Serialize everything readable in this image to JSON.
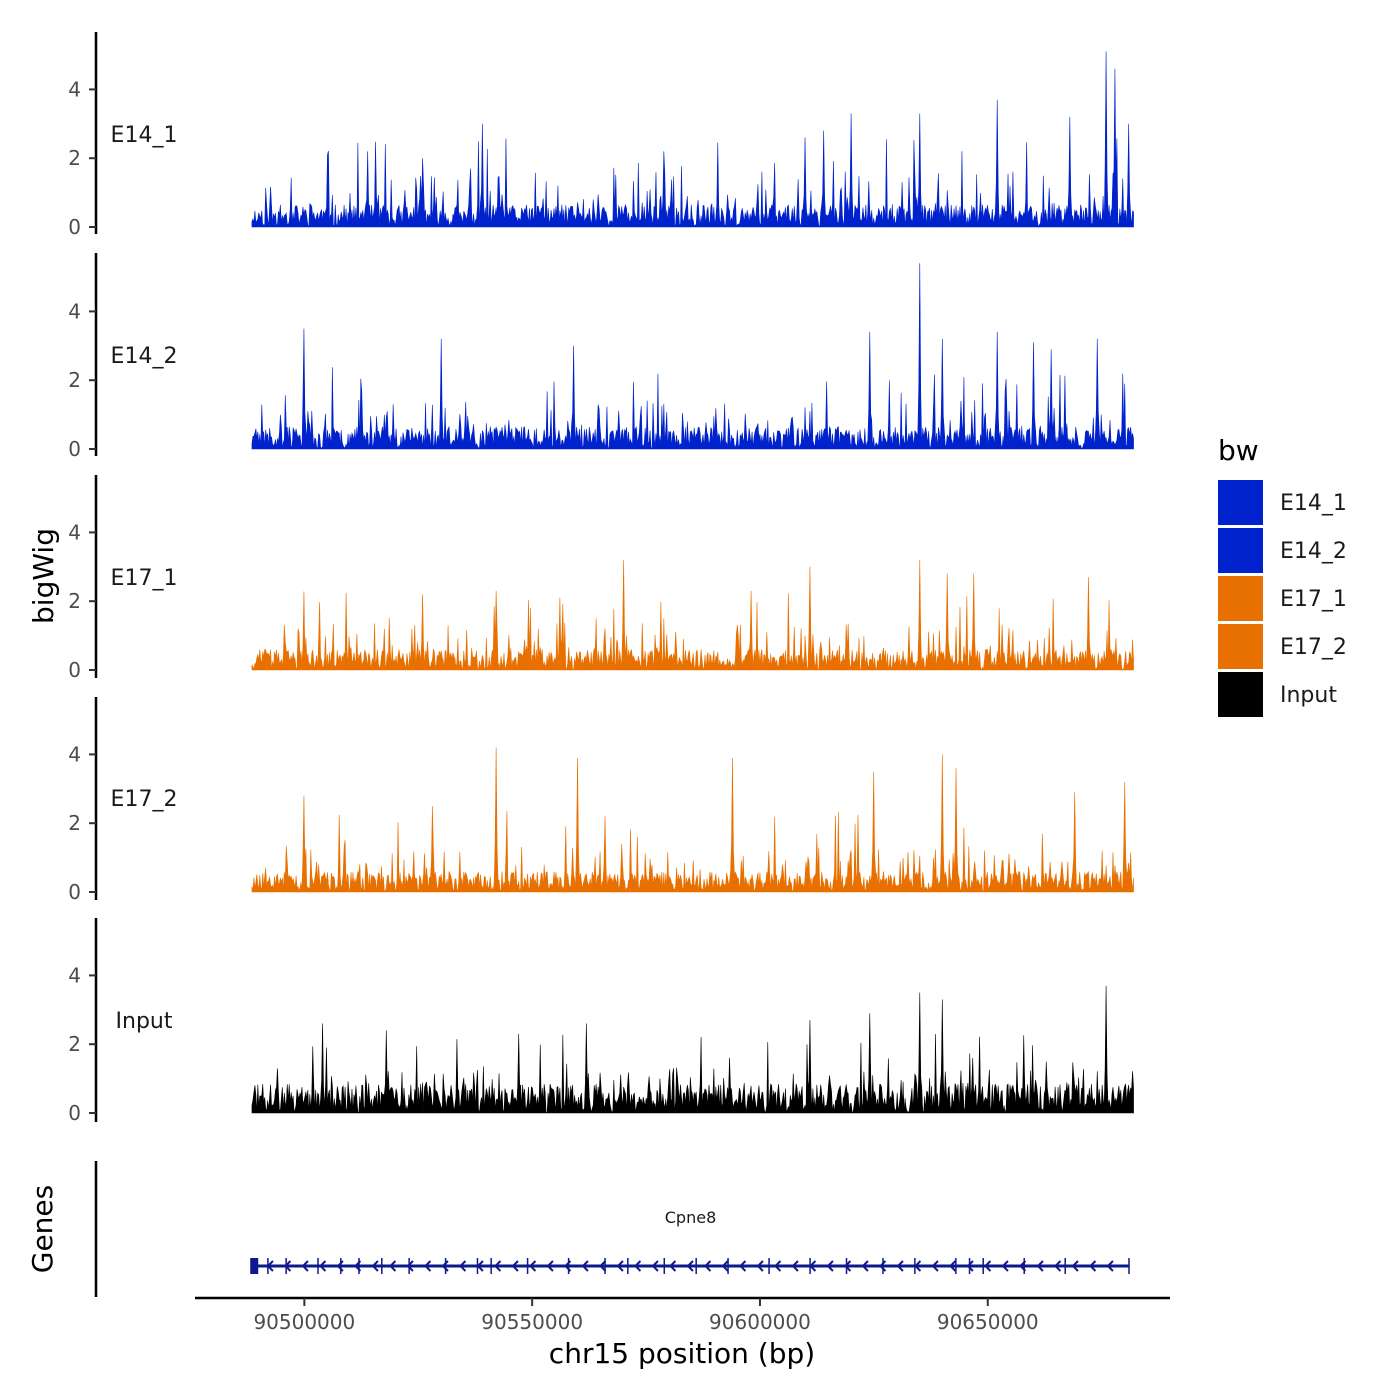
{
  "chart_data": {
    "type": "area",
    "ylabel": "bigWig",
    "xlabel": "chr15 position (bp)",
    "xlim": [
      90476000,
      90690000
    ],
    "data_xrange": [
      90488500,
      90682000
    ],
    "x_ticks": [
      90500000,
      90550000,
      90600000,
      90650000
    ],
    "x_tick_labels": [
      "90500000",
      "90550000",
      "90600000",
      "90650000"
    ],
    "ylim": [
      0,
      5.7
    ],
    "y_ticks": [
      0,
      2,
      4
    ],
    "y_tick_labels": [
      "0",
      "2",
      "4"
    ],
    "tracks": [
      {
        "name": "E14_1",
        "color": "#0022cc",
        "seed": 11,
        "base": 0.65,
        "spike": 2.6,
        "peaks": [
          [
            90514000,
            2.2
          ],
          [
            90526000,
            2.0
          ],
          [
            90539000,
            3.0
          ],
          [
            90579000,
            2.2
          ],
          [
            90610000,
            2.6
          ],
          [
            90614000,
            2.8
          ],
          [
            90620000,
            3.3
          ],
          [
            90635000,
            3.3
          ],
          [
            90652000,
            3.7
          ],
          [
            90668000,
            3.2
          ],
          [
            90676000,
            5.1
          ],
          [
            90678000,
            4.6
          ],
          [
            90681000,
            3.0
          ]
        ]
      },
      {
        "name": "E14_2",
        "color": "#0022cc",
        "seed": 23,
        "base": 0.65,
        "spike": 2.4,
        "peaks": [
          [
            90500000,
            3.5
          ],
          [
            90530000,
            3.2
          ],
          [
            90559000,
            3.0
          ],
          [
            90624000,
            3.4
          ],
          [
            90635000,
            5.4
          ],
          [
            90640000,
            3.2
          ],
          [
            90652000,
            3.4
          ],
          [
            90660000,
            3.1
          ],
          [
            90664000,
            2.9
          ],
          [
            90674000,
            3.2
          ]
        ]
      },
      {
        "name": "E17_1",
        "color": "#e87000",
        "seed": 37,
        "base": 0.6,
        "spike": 2.3,
        "peaks": [
          [
            90526000,
            2.2
          ],
          [
            90542000,
            2.3
          ],
          [
            90556000,
            2.1
          ],
          [
            90570000,
            3.2
          ],
          [
            90598000,
            2.3
          ],
          [
            90611000,
            3.0
          ],
          [
            90635000,
            3.2
          ],
          [
            90641000,
            2.8
          ],
          [
            90647000,
            2.8
          ],
          [
            90672000,
            2.7
          ]
        ]
      },
      {
        "name": "E17_2",
        "color": "#e87000",
        "seed": 53,
        "base": 0.6,
        "spike": 2.4,
        "peaks": [
          [
            90500000,
            2.8
          ],
          [
            90528000,
            2.5
          ],
          [
            90542000,
            4.2
          ],
          [
            90560000,
            3.9
          ],
          [
            90566000,
            2.2
          ],
          [
            90594000,
            3.9
          ],
          [
            90625000,
            3.5
          ],
          [
            90640000,
            4.0
          ],
          [
            90643000,
            3.6
          ],
          [
            90669000,
            2.9
          ],
          [
            90680000,
            3.2
          ]
        ]
      },
      {
        "name": "Input",
        "color": "#000000",
        "seed": 71,
        "base": 0.85,
        "spike": 2.3,
        "peaks": [
          [
            90504000,
            2.6
          ],
          [
            90518000,
            2.4
          ],
          [
            90547000,
            2.3
          ],
          [
            90562000,
            2.6
          ],
          [
            90611000,
            2.7
          ],
          [
            90624000,
            2.9
          ],
          [
            90635000,
            3.5
          ],
          [
            90640000,
            3.3
          ],
          [
            90676000,
            3.7
          ]
        ]
      }
    ],
    "legend": {
      "title": "bw",
      "position": "right",
      "items": [
        {
          "label": "E14_1",
          "color": "#0022cc"
        },
        {
          "label": "E14_2",
          "color": "#0022cc"
        },
        {
          "label": "E17_1",
          "color": "#e87000"
        },
        {
          "label": "E17_2",
          "color": "#e87000"
        },
        {
          "label": "Input",
          "color": "#000000"
        }
      ]
    },
    "genes_panel": {
      "label": "Genes",
      "genes": [
        {
          "name": "Cpne8",
          "start": 90488500,
          "end": 90681000,
          "strand": "-",
          "color": "#0d1a8c",
          "exons": [
            90489000,
            90492000,
            90496000,
            90503000,
            90508000,
            90512000,
            90517000,
            90523000,
            90531000,
            90538000,
            90541000,
            90549000,
            90558000,
            90566000,
            90571000,
            90579000,
            90586000,
            90593000,
            90602000,
            90611000,
            90619000,
            90627000,
            90634000,
            90643000,
            90646000,
            90649000,
            90658000,
            90667000,
            90681000
          ]
        }
      ]
    }
  }
}
